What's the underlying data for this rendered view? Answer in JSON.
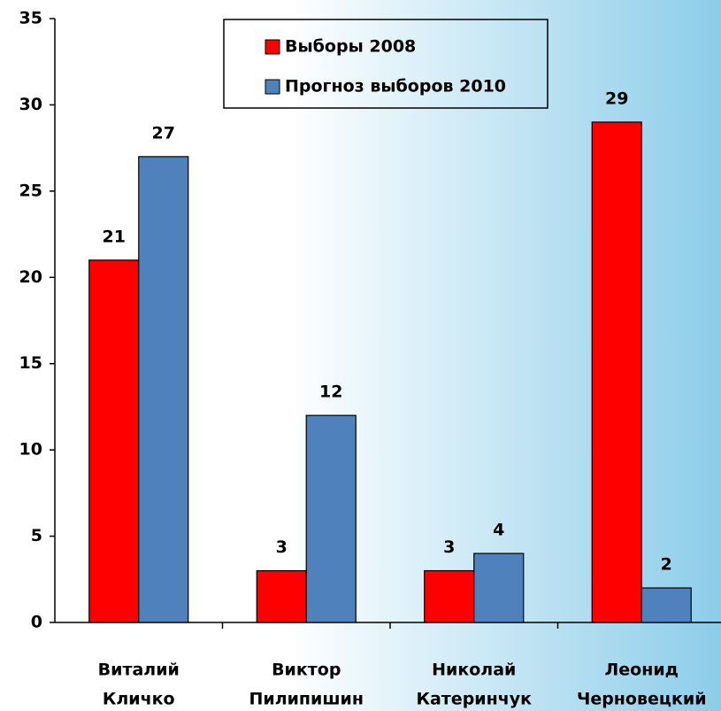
{
  "chart_data": {
    "type": "bar",
    "categories": [
      [
        "Виталий",
        "Кличко"
      ],
      [
        "Виктор",
        "Пилипишин"
      ],
      [
        "Николай",
        "Катеринчук"
      ],
      [
        "Леонид",
        "Черновецкий"
      ]
    ],
    "series": [
      {
        "name": "Выборы 2008",
        "color": "#ff0000",
        "values": [
          21,
          3,
          3,
          29
        ]
      },
      {
        "name": "Прогноз выборов 2010",
        "color": "#4f81bd",
        "values": [
          27,
          12,
          4,
          2
        ]
      }
    ],
    "ylim": [
      0,
      35
    ],
    "yticks": [
      0,
      5,
      10,
      15,
      20,
      25,
      30,
      35
    ],
    "legend": "top"
  }
}
